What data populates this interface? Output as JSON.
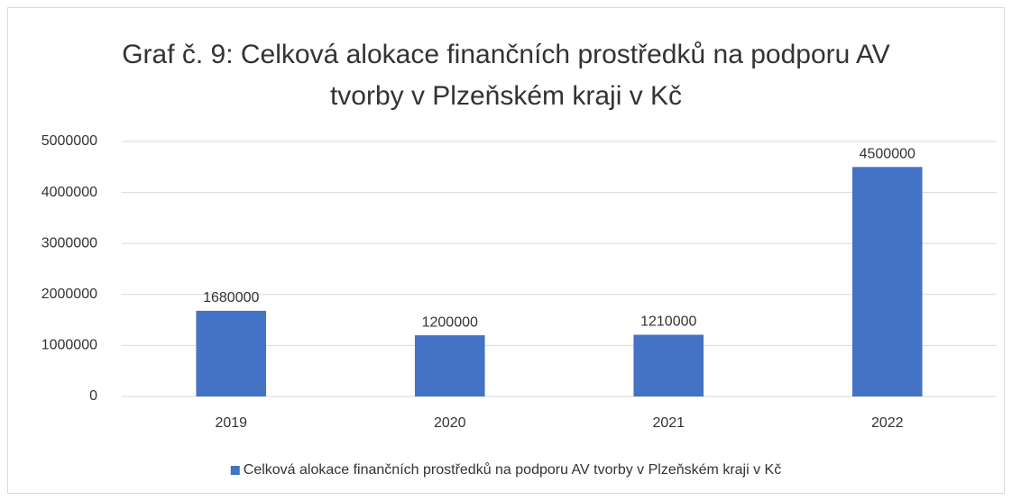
{
  "chart_data": {
    "type": "bar",
    "title": "Graf č. 9: Celková alokace finančních prostředků na podporu AV tvorby v Plzeňském kraji v Kč",
    "categories": [
      "2019",
      "2020",
      "2021",
      "2022"
    ],
    "series": [
      {
        "name": "Celková alokace finančních prostředků na podporu AV tvorby v Plzeňském kraji v Kč",
        "color": "#4472c4",
        "values": [
          1680000,
          1200000,
          1210000,
          4500000
        ]
      }
    ],
    "ylim": [
      0,
      5000000
    ],
    "yticks": [
      0,
      1000000,
      2000000,
      3000000,
      4000000,
      5000000
    ],
    "grid": true,
    "legend": "bottom"
  }
}
